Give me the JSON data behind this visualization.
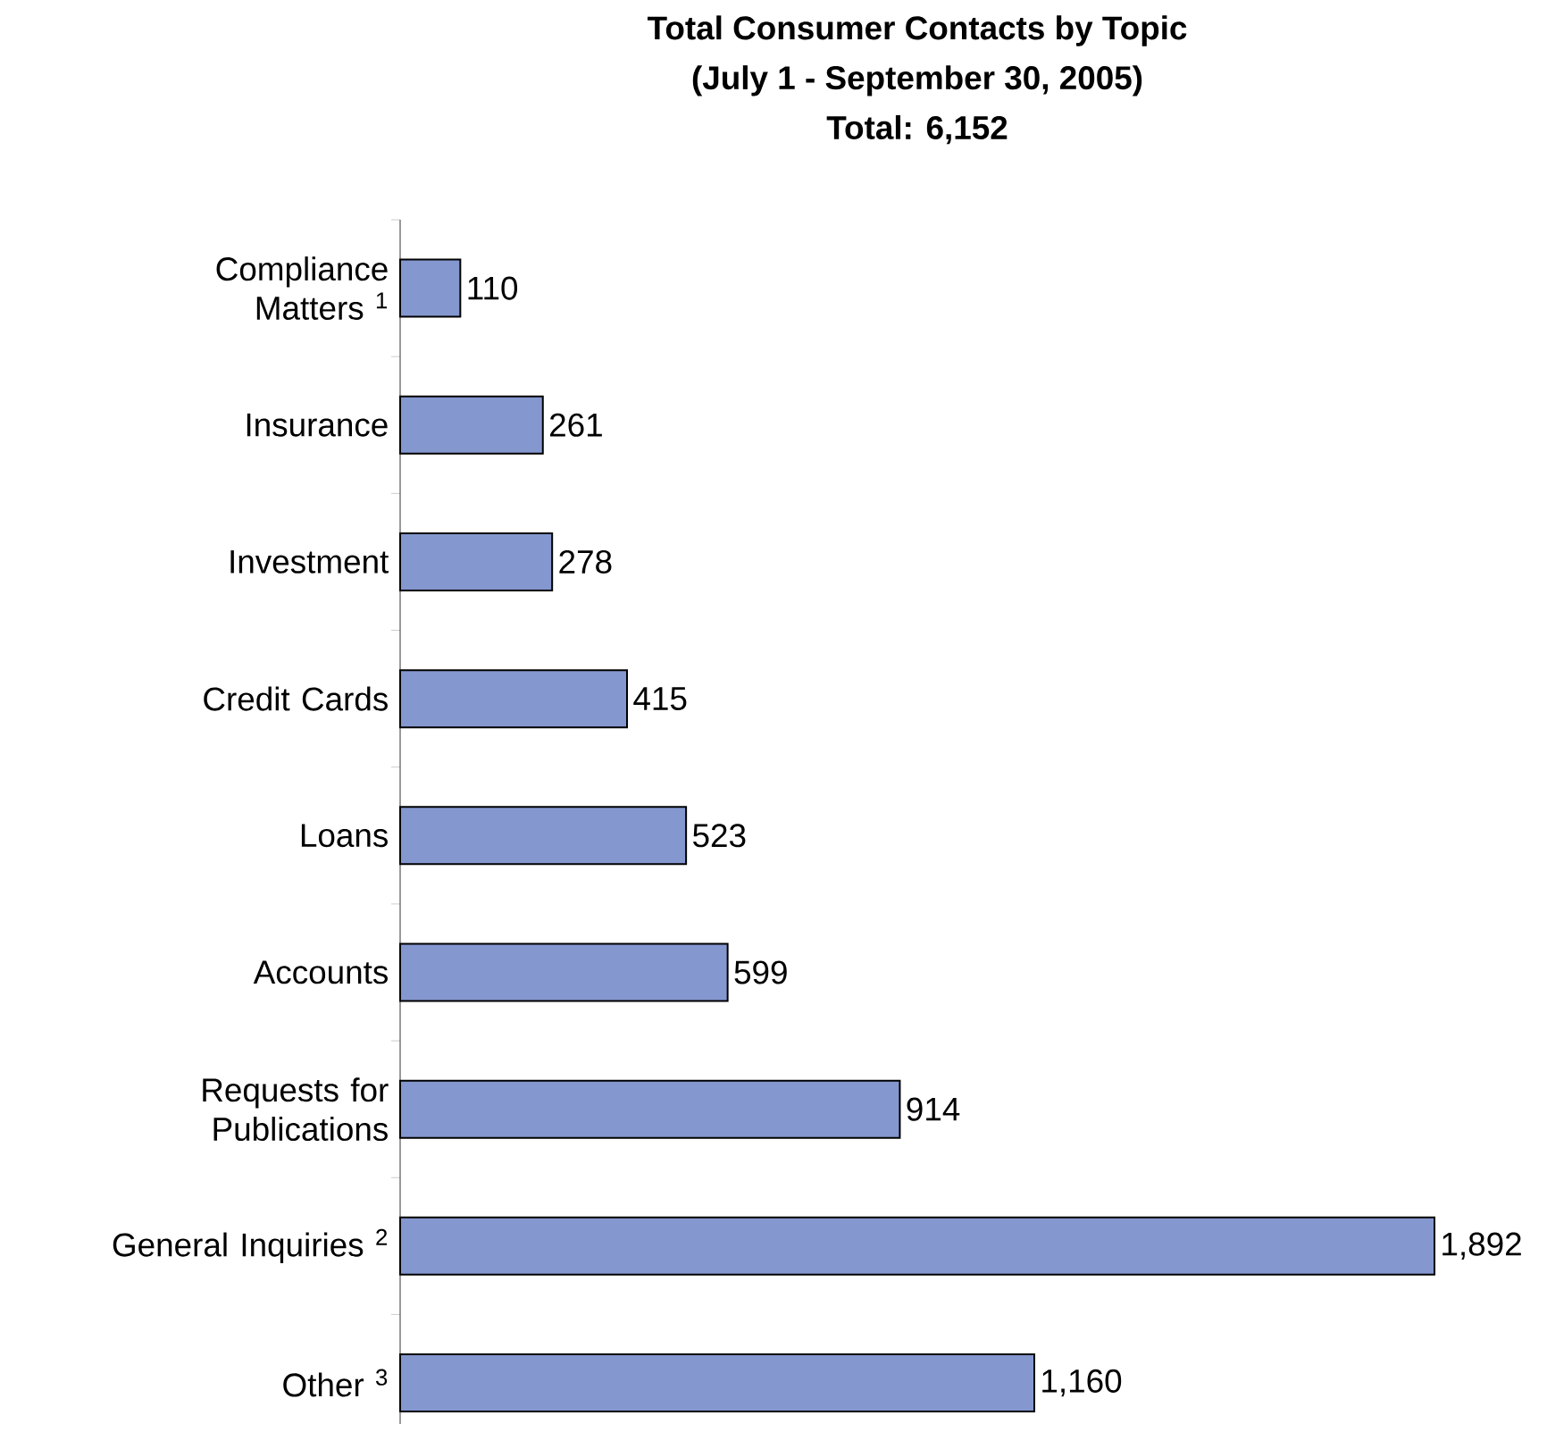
{
  "chart_data": {
    "type": "bar",
    "orientation": "horizontal",
    "title": "Total Consumer Contacts by Topic",
    "subtitle": "(July 1 - September 30, 2005)",
    "annotations": [
      "Total: 6,152"
    ],
    "categories": [
      "Compliance Matters $^{1}$",
      "Insurance",
      "Investment",
      "Credit Cards",
      "Loans",
      "Accounts",
      "Requests for Publications",
      "General Inquiries $^{2}$",
      "Other $^{3}$"
    ],
    "values": [
      110,
      261,
      278,
      415,
      523,
      599,
      914,
      1892,
      1160
    ],
    "value_labels": [
      "110",
      "261",
      "278",
      "415",
      "523",
      "599",
      "914",
      "1,892",
      "1,160"
    ],
    "color": "#8497cf"
  }
}
